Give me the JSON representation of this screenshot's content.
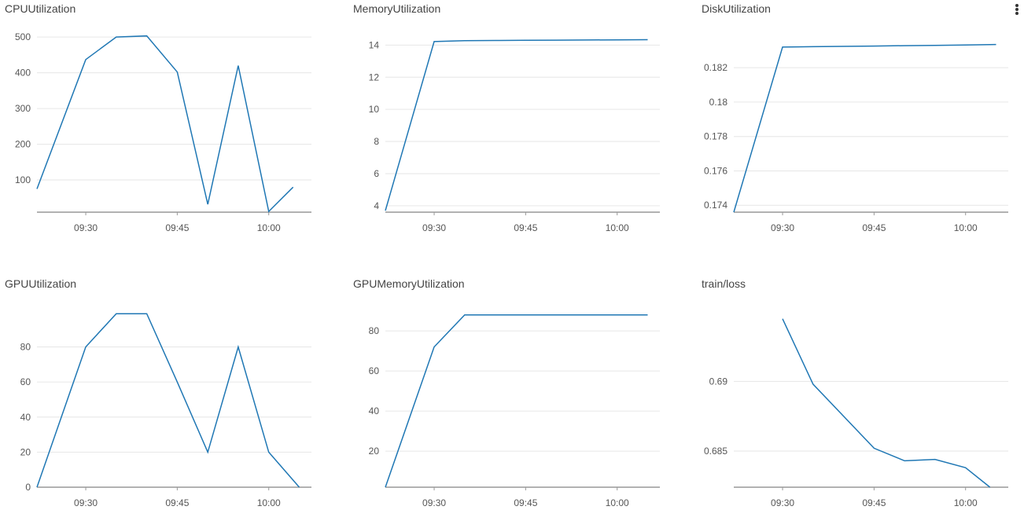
{
  "colors": {
    "line": "#1f77b4",
    "grid": "#e6e6e6",
    "axis": "#999999"
  },
  "menu": {
    "icon": "kebab-menu-icon"
  },
  "chart_data": [
    {
      "type": "line",
      "title": "CPUUtilization",
      "x": [
        "09:22",
        "09:30",
        "09:35",
        "09:40",
        "09:45",
        "09:50",
        "09:55",
        "10:00",
        "10:04"
      ],
      "values": [
        75,
        437,
        500,
        503,
        402,
        32,
        420,
        12,
        80
      ],
      "ylim": [
        10,
        520
      ],
      "yticks": [
        100,
        200,
        300,
        400,
        500
      ],
      "ytick_labels": [
        "100",
        "200",
        "300",
        "400",
        "500"
      ],
      "xlim": [
        "09:22",
        "10:07"
      ],
      "xticks": [
        "09:30",
        "09:45",
        "10:00"
      ],
      "xtick_labels": [
        "09:30",
        "09:45",
        "10:00"
      ]
    },
    {
      "type": "line",
      "title": "MemoryUtilization",
      "x": [
        "09:22",
        "09:30",
        "09:35",
        "09:40",
        "09:45",
        "09:50",
        "09:55",
        "10:00",
        "10:05"
      ],
      "values": [
        3.7,
        14.22,
        14.28,
        14.29,
        14.3,
        14.31,
        14.32,
        14.33,
        14.34
      ],
      "ylim": [
        3.6,
        14.95
      ],
      "yticks": [
        4,
        6,
        8,
        10,
        12,
        14
      ],
      "ytick_labels": [
        "4",
        "6",
        "8",
        "10",
        "12",
        "14"
      ],
      "xlim": [
        "09:22",
        "10:07"
      ],
      "xticks": [
        "09:30",
        "09:45",
        "10:00"
      ],
      "xtick_labels": [
        "09:30",
        "09:45",
        "10:00"
      ]
    },
    {
      "type": "line",
      "title": "DiskUtilization",
      "x": [
        "09:22",
        "09:30",
        "09:35",
        "09:40",
        "09:45",
        "09:50",
        "09:55",
        "10:00",
        "10:05"
      ],
      "values": [
        0.1736,
        0.1832,
        0.18322,
        0.18324,
        0.18326,
        0.18328,
        0.1833,
        0.18332,
        0.18335
      ],
      "ylim": [
        0.1736,
        0.1842
      ],
      "yticks": [
        0.174,
        0.176,
        0.178,
        0.18,
        0.182
      ],
      "ytick_labels": [
        "0.174",
        "0.176",
        "0.178",
        "0.18",
        "0.182"
      ],
      "xlim": [
        "09:22",
        "10:07"
      ],
      "xticks": [
        "09:30",
        "09:45",
        "10:00"
      ],
      "xtick_labels": [
        "09:30",
        "09:45",
        "10:00"
      ]
    },
    {
      "type": "line",
      "title": "GPUUtilization",
      "x": [
        "09:22",
        "09:30",
        "09:35",
        "09:40",
        "09:45",
        "09:50",
        "09:55",
        "10:00",
        "10:05"
      ],
      "values": [
        0,
        80,
        99,
        99,
        60,
        20,
        80,
        20,
        0
      ],
      "ylim": [
        0,
        104
      ],
      "yticks": [
        0,
        20,
        40,
        60,
        80
      ],
      "ytick_labels": [
        "0",
        "20",
        "40",
        "60",
        "80"
      ],
      "xlim": [
        "09:22",
        "10:07"
      ],
      "xticks": [
        "09:30",
        "09:45",
        "10:00"
      ],
      "xtick_labels": [
        "09:30",
        "09:45",
        "10:00"
      ]
    },
    {
      "type": "line",
      "title": "GPUMemoryUtilization",
      "x": [
        "09:22",
        "09:30",
        "09:35",
        "09:40",
        "09:45",
        "09:50",
        "09:55",
        "10:00",
        "10:05"
      ],
      "values": [
        2,
        72,
        88,
        88,
        88,
        88,
        88,
        88,
        88
      ],
      "ylim": [
        2,
        93
      ],
      "yticks": [
        20,
        40,
        60,
        80
      ],
      "ytick_labels": [
        "20",
        "40",
        "60",
        "80"
      ],
      "xlim": [
        "09:22",
        "10:07"
      ],
      "xticks": [
        "09:30",
        "09:45",
        "10:00"
      ],
      "xtick_labels": [
        "09:30",
        "09:45",
        "10:00"
      ]
    },
    {
      "type": "line",
      "title": "train/loss",
      "x": [
        "09:30",
        "09:35",
        "09:45",
        "09:50",
        "09:55",
        "10:00",
        "10:04"
      ],
      "values": [
        0.6945,
        0.6898,
        0.6852,
        0.6843,
        0.6844,
        0.6838,
        0.6824
      ],
      "ylim": [
        0.6824,
        0.6955
      ],
      "yticks": [
        0.685,
        0.69
      ],
      "ytick_labels": [
        "0.685",
        "0.69"
      ],
      "xlim": [
        "09:22",
        "10:07"
      ],
      "xticks": [
        "09:30",
        "09:45",
        "10:00"
      ],
      "xtick_labels": [
        "09:30",
        "09:45",
        "10:00"
      ]
    }
  ]
}
